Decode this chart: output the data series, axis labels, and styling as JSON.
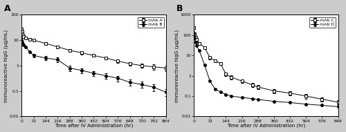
{
  "panel_A": {
    "label": "A",
    "series": [
      {
        "name": "mAb A",
        "filled": false,
        "marker": "s",
        "time": [
          0,
          2,
          4,
          8,
          12,
          24,
          48,
          72,
          144,
          216,
          288,
          360,
          432,
          504,
          576,
          648,
          720,
          792,
          864
        ],
        "conc": [
          28,
          22,
          18,
          16,
          14,
          12,
          11,
          10,
          7.5,
          5.5,
          4.0,
          3.2,
          2.5,
          2.0,
          1.5,
          1.2,
          1.0,
          0.9,
          0.8
        ],
        "sd": [
          0,
          0,
          0,
          0,
          0,
          0,
          0,
          0,
          0.9,
          0.6,
          0.5,
          0.4,
          0.3,
          0.3,
          0.25,
          0.2,
          0.18,
          0.22,
          0.18
        ]
      },
      {
        "name": "mAb B",
        "filled": true,
        "marker": "o",
        "time": [
          0,
          2,
          4,
          8,
          12,
          24,
          48,
          72,
          144,
          216,
          288,
          360,
          432,
          504,
          576,
          648,
          720,
          792,
          864
        ],
        "conc": [
          10,
          8.5,
          7.5,
          7.0,
          6.5,
          5.5,
          3.5,
          2.5,
          2.0,
          1.7,
          0.8,
          0.65,
          0.5,
          0.4,
          0.32,
          0.22,
          0.18,
          0.14,
          0.09
        ],
        "sd": [
          0,
          0,
          0,
          0,
          0,
          0,
          0,
          0.35,
          0.4,
          0.35,
          0.18,
          0.15,
          0.12,
          0.1,
          0.08,
          0.06,
          0.05,
          0.04,
          0.025
        ]
      }
    ],
    "xlim": [
      0,
      864
    ],
    "ylim": [
      0.01,
      100
    ],
    "yticks": [
      0.01,
      0.1,
      1,
      10,
      100
    ],
    "ytick_labels": [
      "0.01",
      "0.1",
      "1",
      "10",
      "100"
    ],
    "xticks": [
      0,
      72,
      144,
      216,
      288,
      360,
      432,
      504,
      576,
      648,
      720,
      792,
      864
    ],
    "xlabel": "Time after IV Administration (hr)",
    "ylabel": "Immunoreactive hIgG (μg/mL)",
    "legend_loc": "upper right"
  },
  "panel_B": {
    "label": "B",
    "series": [
      {
        "name": "mAb C",
        "filled": false,
        "marker": "s",
        "time": [
          0,
          4,
          8,
          12,
          24,
          48,
          72,
          96,
          120,
          144,
          168,
          216,
          264,
          288,
          360,
          432,
          504,
          576,
          648
        ],
        "conc": [
          230,
          120,
          80,
          60,
          40,
          25,
          8.0,
          5.5,
          4.0,
          1.2,
          0.85,
          0.55,
          0.35,
          0.28,
          0.18,
          0.14,
          0.1,
          0.07,
          0.05
        ],
        "sd": [
          0,
          0,
          0,
          0,
          0,
          0,
          1.5,
          1.0,
          0.7,
          0.25,
          0.18,
          0.12,
          0.08,
          0.06,
          0.04,
          0.03,
          0.025,
          0.015,
          0.012
        ]
      },
      {
        "name": "mAb D",
        "filled": true,
        "marker": "o",
        "time": [
          0,
          4,
          8,
          12,
          24,
          48,
          72,
          96,
          120,
          144,
          168,
          216,
          264,
          288,
          360,
          432,
          504,
          576,
          648
        ],
        "conc": [
          130,
          70,
          45,
          30,
          18,
          3.5,
          0.55,
          0.22,
          0.16,
          0.12,
          0.1,
          0.085,
          0.075,
          0.068,
          0.055,
          0.048,
          0.04,
          0.035,
          0.03
        ],
        "sd": [
          0,
          0,
          0,
          0,
          0,
          0,
          0,
          0,
          0,
          0,
          0,
          0,
          0,
          0,
          0,
          0,
          0,
          0,
          0
        ]
      }
    ],
    "xlim": [
      0,
      648
    ],
    "ylim": [
      0.01,
      1000
    ],
    "yticks": [
      0.01,
      0.1,
      1,
      10,
      100,
      1000
    ],
    "ytick_labels": [
      "0.01",
      "0.1",
      "1",
      "10",
      "100",
      "1000"
    ],
    "xticks": [
      0,
      72,
      144,
      216,
      288,
      360,
      432,
      504,
      576,
      648
    ],
    "xlabel": "Time after IV Administration (hr)",
    "ylabel": "Immunoreactive hIgG (μg/mL)",
    "legend_loc": "upper right"
  },
  "fig_bg": "#cccccc",
  "panel_bg": "white",
  "border_color": "#999999"
}
